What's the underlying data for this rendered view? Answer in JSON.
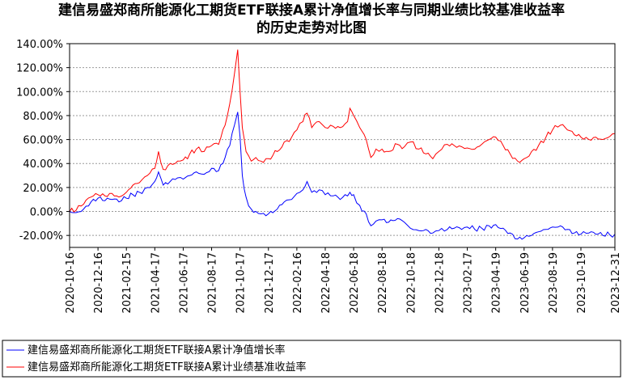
{
  "chart_data": {
    "type": "line",
    "title_lines": [
      "建信易盛郑商所能源化工期货ETF联接A累计净值增长率与同期业绩比较基准收益率",
      "的历史走势对比图"
    ],
    "xlabel": "",
    "ylabel": "",
    "ylim": [
      -0.3,
      1.4
    ],
    "y_ticks": [
      -0.2,
      0.0,
      0.2,
      0.4,
      0.6,
      0.8,
      1.0,
      1.2,
      1.4
    ],
    "y_tick_labels": [
      "-20.00%",
      "0.00%",
      "20.00%",
      "40.00%",
      "60.00%",
      "80.00%",
      "100.00%",
      "120.00%",
      "140.00%"
    ],
    "x_ticks": [
      "2020-10-16",
      "2020-12-16",
      "2021-02-15",
      "2021-04-17",
      "2021-06-17",
      "2021-08-17",
      "2021-10-17",
      "2021-12-17",
      "2022-02-16",
      "2022-04-18",
      "2022-06-18",
      "2022-08-18",
      "2022-10-18",
      "2022-12-18",
      "2023-02-17",
      "2023-04-19",
      "2023-06-19",
      "2023-08-19",
      "2023-10-19",
      "2023-12-31"
    ],
    "grid": "horizontal-dotted",
    "legend_position": "bottom",
    "series": [
      {
        "name": "建信易盛郑商所能源化工期货ETF联接A累计净值增长率",
        "color": "#0000ff",
        "points": [
          [
            "2020-10-16",
            0.0
          ],
          [
            "2020-10-30",
            -0.01
          ],
          [
            "2020-11-15",
            0.02
          ],
          [
            "2020-12-01",
            0.08
          ],
          [
            "2020-12-16",
            0.11
          ],
          [
            "2020-12-31",
            0.09
          ],
          [
            "2021-01-15",
            0.1
          ],
          [
            "2021-01-30",
            0.08
          ],
          [
            "2021-02-15",
            0.11
          ],
          [
            "2021-03-01",
            0.14
          ],
          [
            "2021-03-15",
            0.16
          ],
          [
            "2021-04-01",
            0.2
          ],
          [
            "2021-04-17",
            0.25
          ],
          [
            "2021-04-25",
            0.33
          ],
          [
            "2021-05-05",
            0.22
          ],
          [
            "2021-05-20",
            0.25
          ],
          [
            "2021-06-05",
            0.28
          ],
          [
            "2021-06-17",
            0.27
          ],
          [
            "2021-07-01",
            0.3
          ],
          [
            "2021-07-15",
            0.33
          ],
          [
            "2021-08-01",
            0.31
          ],
          [
            "2021-08-17",
            0.36
          ],
          [
            "2021-09-01",
            0.34
          ],
          [
            "2021-09-15",
            0.45
          ],
          [
            "2021-09-25",
            0.55
          ],
          [
            "2021-10-05",
            0.72
          ],
          [
            "2021-10-12",
            0.83
          ],
          [
            "2021-10-17",
            0.62
          ],
          [
            "2021-10-22",
            0.3
          ],
          [
            "2021-10-30",
            0.12
          ],
          [
            "2021-11-10",
            0.02
          ],
          [
            "2021-11-20",
            0.0
          ],
          [
            "2021-12-01",
            -0.02
          ],
          [
            "2021-12-17",
            -0.02
          ],
          [
            "2022-01-05",
            0.02
          ],
          [
            "2022-01-20",
            0.08
          ],
          [
            "2022-02-05",
            0.1
          ],
          [
            "2022-02-16",
            0.15
          ],
          [
            "2022-03-01",
            0.18
          ],
          [
            "2022-03-10",
            0.25
          ],
          [
            "2022-03-20",
            0.16
          ],
          [
            "2022-04-05",
            0.18
          ],
          [
            "2022-04-18",
            0.14
          ],
          [
            "2022-05-05",
            0.13
          ],
          [
            "2022-05-20",
            0.1
          ],
          [
            "2022-06-05",
            0.13
          ],
          [
            "2022-06-10",
            0.16
          ],
          [
            "2022-06-18",
            0.14
          ],
          [
            "2022-07-01",
            0.05
          ],
          [
            "2022-07-15",
            -0.02
          ],
          [
            "2022-07-25",
            -0.12
          ],
          [
            "2022-08-05",
            -0.08
          ],
          [
            "2022-08-18",
            -0.07
          ],
          [
            "2022-09-01",
            -0.09
          ],
          [
            "2022-09-20",
            -0.06
          ],
          [
            "2022-10-05",
            -0.09
          ],
          [
            "2022-10-18",
            -0.14
          ],
          [
            "2022-11-05",
            -0.16
          ],
          [
            "2022-11-20",
            -0.15
          ],
          [
            "2022-12-05",
            -0.18
          ],
          [
            "2022-12-18",
            -0.16
          ],
          [
            "2023-01-05",
            -0.15
          ],
          [
            "2023-01-20",
            -0.14
          ],
          [
            "2023-02-05",
            -0.15
          ],
          [
            "2023-02-17",
            -0.13
          ],
          [
            "2023-03-05",
            -0.15
          ],
          [
            "2023-03-20",
            -0.14
          ],
          [
            "2023-04-05",
            -0.12
          ],
          [
            "2023-04-19",
            -0.11
          ],
          [
            "2023-05-05",
            -0.14
          ],
          [
            "2023-05-20",
            -0.18
          ],
          [
            "2023-06-05",
            -0.23
          ],
          [
            "2023-06-19",
            -0.22
          ],
          [
            "2023-07-05",
            -0.2
          ],
          [
            "2023-07-20",
            -0.17
          ],
          [
            "2023-08-05",
            -0.15
          ],
          [
            "2023-08-19",
            -0.13
          ],
          [
            "2023-09-05",
            -0.12
          ],
          [
            "2023-09-20",
            -0.15
          ],
          [
            "2023-10-05",
            -0.18
          ],
          [
            "2023-10-19",
            -0.19
          ],
          [
            "2023-11-05",
            -0.18
          ],
          [
            "2023-11-20",
            -0.19
          ],
          [
            "2023-12-05",
            -0.2
          ],
          [
            "2023-12-31",
            -0.19
          ]
        ]
      },
      {
        "name": "建信易盛郑商所能源化工期货ETF联接A累计业绩基准收益率",
        "color": "#ff0000",
        "points": [
          [
            "2020-10-16",
            0.0
          ],
          [
            "2020-10-30",
            0.01
          ],
          [
            "2020-11-15",
            0.06
          ],
          [
            "2020-12-01",
            0.12
          ],
          [
            "2020-12-16",
            0.14
          ],
          [
            "2020-12-31",
            0.13
          ],
          [
            "2021-01-15",
            0.15
          ],
          [
            "2021-01-30",
            0.12
          ],
          [
            "2021-02-15",
            0.16
          ],
          [
            "2021-03-01",
            0.22
          ],
          [
            "2021-03-15",
            0.24
          ],
          [
            "2021-04-01",
            0.3
          ],
          [
            "2021-04-17",
            0.36
          ],
          [
            "2021-04-25",
            0.5
          ],
          [
            "2021-05-05",
            0.35
          ],
          [
            "2021-05-20",
            0.4
          ],
          [
            "2021-06-05",
            0.42
          ],
          [
            "2021-06-17",
            0.43
          ],
          [
            "2021-07-01",
            0.48
          ],
          [
            "2021-07-15",
            0.52
          ],
          [
            "2021-08-01",
            0.5
          ],
          [
            "2021-08-17",
            0.55
          ],
          [
            "2021-09-01",
            0.56
          ],
          [
            "2021-09-15",
            0.72
          ],
          [
            "2021-09-25",
            0.9
          ],
          [
            "2021-10-05",
            1.15
          ],
          [
            "2021-10-12",
            1.35
          ],
          [
            "2021-10-17",
            1.0
          ],
          [
            "2021-10-22",
            0.7
          ],
          [
            "2021-10-30",
            0.5
          ],
          [
            "2021-11-10",
            0.42
          ],
          [
            "2021-11-20",
            0.45
          ],
          [
            "2021-12-01",
            0.42
          ],
          [
            "2021-12-17",
            0.44
          ],
          [
            "2022-01-05",
            0.5
          ],
          [
            "2022-01-20",
            0.58
          ],
          [
            "2022-02-05",
            0.62
          ],
          [
            "2022-02-16",
            0.68
          ],
          [
            "2022-03-01",
            0.75
          ],
          [
            "2022-03-10",
            0.82
          ],
          [
            "2022-03-20",
            0.7
          ],
          [
            "2022-04-05",
            0.75
          ],
          [
            "2022-04-18",
            0.7
          ],
          [
            "2022-05-05",
            0.71
          ],
          [
            "2022-05-20",
            0.7
          ],
          [
            "2022-06-05",
            0.75
          ],
          [
            "2022-06-10",
            0.86
          ],
          [
            "2022-06-18",
            0.8
          ],
          [
            "2022-07-01",
            0.7
          ],
          [
            "2022-07-15",
            0.6
          ],
          [
            "2022-07-25",
            0.45
          ],
          [
            "2022-08-05",
            0.52
          ],
          [
            "2022-08-18",
            0.52
          ],
          [
            "2022-09-01",
            0.5
          ],
          [
            "2022-09-20",
            0.56
          ],
          [
            "2022-10-05",
            0.54
          ],
          [
            "2022-10-18",
            0.58
          ],
          [
            "2022-11-05",
            0.52
          ],
          [
            "2022-11-20",
            0.48
          ],
          [
            "2022-12-05",
            0.44
          ],
          [
            "2022-12-18",
            0.5
          ],
          [
            "2023-01-05",
            0.56
          ],
          [
            "2023-01-20",
            0.55
          ],
          [
            "2023-02-05",
            0.54
          ],
          [
            "2023-02-17",
            0.53
          ],
          [
            "2023-03-05",
            0.52
          ],
          [
            "2023-03-20",
            0.56
          ],
          [
            "2023-04-05",
            0.6
          ],
          [
            "2023-04-19",
            0.62
          ],
          [
            "2023-05-05",
            0.55
          ],
          [
            "2023-05-20",
            0.48
          ],
          [
            "2023-06-05",
            0.42
          ],
          [
            "2023-06-19",
            0.44
          ],
          [
            "2023-07-05",
            0.5
          ],
          [
            "2023-07-20",
            0.55
          ],
          [
            "2023-08-05",
            0.62
          ],
          [
            "2023-08-19",
            0.68
          ],
          [
            "2023-09-05",
            0.72
          ],
          [
            "2023-09-20",
            0.68
          ],
          [
            "2023-10-05",
            0.64
          ],
          [
            "2023-10-19",
            0.62
          ],
          [
            "2023-11-05",
            0.6
          ],
          [
            "2023-11-20",
            0.62
          ],
          [
            "2023-12-05",
            0.6
          ],
          [
            "2023-12-31",
            0.65
          ]
        ]
      }
    ]
  }
}
